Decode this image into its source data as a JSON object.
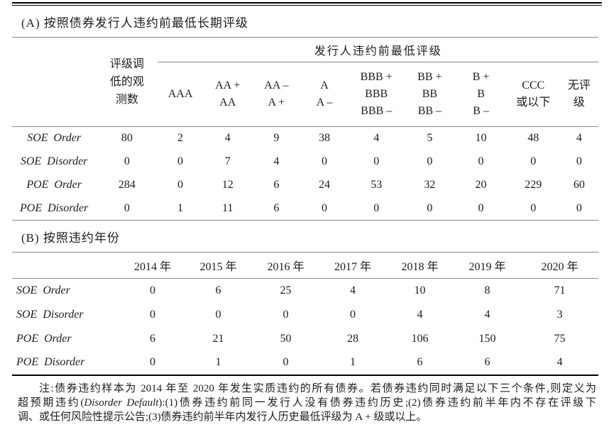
{
  "colors": {
    "line_thin": "#8a8a8a",
    "line_thick": "#000000",
    "text": "#1c1c1c"
  },
  "panelA": {
    "title": "(A) 按照债券发行人违约前最低长期评级",
    "obs_header_lines": [
      "评级调",
      "低的观",
      "测数"
    ],
    "span_header": "发行人违约前最低评级",
    "rating_columns": [
      [
        "AAA"
      ],
      [
        "AA +",
        "AA"
      ],
      [
        "AA –",
        "A +"
      ],
      [
        "A",
        "A –"
      ],
      [
        "BBB +",
        "BBB",
        "BBB –"
      ],
      [
        "BB +",
        "BB",
        "BB –"
      ],
      [
        "B +",
        "B",
        "B –"
      ],
      [
        "CCC",
        "或以下"
      ],
      [
        "无评",
        "级"
      ]
    ],
    "rows": [
      {
        "label": "SOE Order",
        "obs": "80",
        "values": [
          "2",
          "4",
          "9",
          "38",
          "4",
          "5",
          "10",
          "48",
          "4"
        ]
      },
      {
        "label": "SOE Disorder",
        "obs": "0",
        "values": [
          "0",
          "7",
          "4",
          "0",
          "0",
          "0",
          "0",
          "0",
          "0"
        ]
      },
      {
        "label": "POE Order",
        "obs": "284",
        "values": [
          "0",
          "12",
          "6",
          "24",
          "53",
          "32",
          "20",
          "229",
          "60"
        ]
      },
      {
        "label": "POE Disorder",
        "obs": "0",
        "values": [
          "1",
          "11",
          "6",
          "0",
          "0",
          "0",
          "0",
          "0",
          "0"
        ]
      }
    ]
  },
  "panelB": {
    "title": "(B) 按照违约年份",
    "year_columns": [
      "2014 年",
      "2015 年",
      "2016 年",
      "2017 年",
      "2018 年",
      "2019 年",
      "2020 年"
    ],
    "rows": [
      {
        "label": "SOE Order",
        "values": [
          "0",
          "6",
          "25",
          "4",
          "10",
          "8",
          "71"
        ]
      },
      {
        "label": "SOE Disorder",
        "values": [
          "0",
          "0",
          "0",
          "0",
          "4",
          "4",
          "3"
        ]
      },
      {
        "label": "POE Order",
        "values": [
          "6",
          "21",
          "50",
          "28",
          "106",
          "150",
          "75"
        ]
      },
      {
        "label": "POE Disorder",
        "values": [
          "0",
          "1",
          "0",
          "1",
          "6",
          "6",
          "4"
        ]
      }
    ]
  },
  "note": {
    "line1": "注:债券违约样本为 2014 年至 2020 年发生实质违约的所有债券。若债券违约同时满足以下三个条件,则定义为",
    "line2_pre": "超预期违约(",
    "line2_italic": "Disorder Default",
    "line2_post": "):(1)债券违约前同一发行人没有债券违约历史;(2)债券违约前半年内不存在评级下",
    "line3": "调、或任何风险性提示公告;(3)债券违约前半年内发行人历史最低评级为 A + 级或以上。"
  }
}
